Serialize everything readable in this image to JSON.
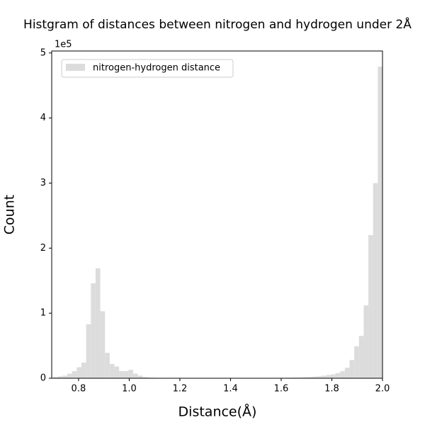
{
  "chart_data": {
    "type": "histogram",
    "title": "Histgram of distances between nitrogen and hydrogen under 2Å",
    "x_label": "Distance(Å)",
    "y_label": "Count",
    "y_offset_label": "1e5",
    "legend": "upper left",
    "bins": [
      0.7,
      0.7186,
      0.7371,
      0.7557,
      0.7743,
      0.7929,
      0.8114,
      0.83,
      0.8486,
      0.8671,
      0.8857,
      0.9043,
      0.9229,
      0.9414,
      0.96,
      0.9786,
      0.9971,
      1.0157,
      1.0343,
      1.0529,
      1.0714,
      1.09,
      1.1086,
      1.1271,
      1.1457,
      1.1643,
      1.1829,
      1.2014,
      1.22,
      1.2386,
      1.2571,
      1.2757,
      1.2943,
      1.3129,
      1.3314,
      1.35,
      1.3686,
      1.3871,
      1.4057,
      1.4243,
      1.4429,
      1.4614,
      1.48,
      1.4986,
      1.5171,
      1.5357,
      1.5543,
      1.5729,
      1.5914,
      1.61,
      1.6286,
      1.6471,
      1.6657,
      1.6843,
      1.7029,
      1.7214,
      1.74,
      1.7586,
      1.7771,
      1.7957,
      1.8143,
      1.8329,
      1.8514,
      1.87,
      1.8886,
      1.9071,
      1.9257,
      1.9443,
      1.9629,
      1.9814,
      2.0
    ],
    "series": [
      {
        "name": "nitrogen-hydrogen distance",
        "color": "#dcdcdc",
        "values": [
          2000,
          3000,
          4000,
          7000,
          11000,
          17000,
          24000,
          83000,
          146000,
          169000,
          103000,
          39000,
          22000,
          18000,
          11000,
          11000,
          13000,
          7000,
          4000,
          2000,
          1000,
          800,
          600,
          500,
          400,
          400,
          300,
          300,
          300,
          300,
          300,
          300,
          300,
          300,
          300,
          300,
          300,
          300,
          300,
          300,
          300,
          300,
          300,
          300,
          300,
          400,
          400,
          500,
          600,
          700,
          800,
          1000,
          1200,
          1500,
          2000,
          2500,
          3000,
          4000,
          5000,
          6000,
          8000,
          11000,
          16000,
          28000,
          49000,
          65000,
          112000,
          220000,
          300000,
          479000
        ]
      }
    ],
    "xlim": [
      0.694,
      2.0
    ],
    "xticks": [
      0.8,
      {
        "value": 1,
        "label": "1.0"
      },
      1.2,
      1.4,
      1.6,
      1.8,
      {
        "value": 2,
        "label": "2.0"
      }
    ],
    "ylim": [
      0,
      503000
    ],
    "yticks": [
      0,
      {
        "value": 100000,
        "label": "1"
      },
      {
        "value": 200000,
        "label": "2"
      },
      {
        "value": 300000,
        "label": "3"
      },
      {
        "value": 400000,
        "label": "4"
      },
      {
        "value": 500000,
        "label": "5"
      }
    ]
  }
}
